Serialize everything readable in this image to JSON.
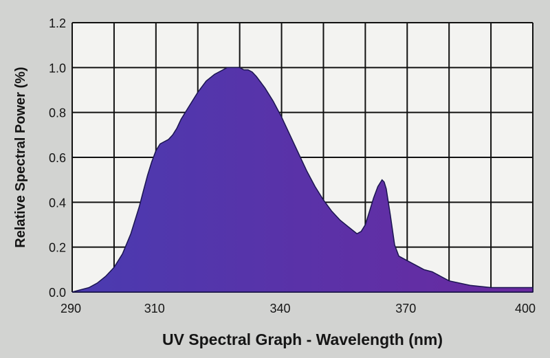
{
  "chart_data": {
    "type": "area",
    "title": "",
    "xlabel": "UV Spectral Graph - Wavelength (nm)",
    "ylabel": "Relative Spectral Power (%)",
    "xlim": [
      290,
      400
    ],
    "ylim": [
      0,
      1.2
    ],
    "x_ticks": [
      290,
      310,
      340,
      370,
      400
    ],
    "x_tick_labels": [
      "290",
      "310",
      "340",
      "370",
      "400"
    ],
    "y_ticks": [
      0,
      0.2,
      0.4,
      0.6,
      0.8,
      1.0,
      1.2
    ],
    "y_tick_labels": [
      "0.0",
      "0.2",
      "0.4",
      "0.6",
      "0.8",
      "1.0",
      "1.2"
    ],
    "grid": true,
    "fill_colors": [
      "#4a3bb0",
      "#5a32a8",
      "#6a2aa0"
    ],
    "series": [
      {
        "x": [
          290,
          292,
          294,
          296,
          298,
          300,
          302,
          304,
          306,
          307,
          308,
          309,
          310,
          311,
          312,
          313,
          314,
          315,
          316,
          318,
          320,
          322,
          324,
          326,
          327,
          328,
          329,
          330,
          331,
          332,
          333,
          334,
          336,
          338,
          340,
          342,
          344,
          346,
          348,
          350,
          352,
          354,
          356,
          358,
          359,
          360,
          361,
          362,
          363,
          364,
          364.5,
          365,
          366,
          367,
          368,
          370,
          372,
          374,
          376,
          378,
          380,
          385,
          390,
          395,
          400
        ],
        "y": [
          0.0,
          0.01,
          0.02,
          0.04,
          0.07,
          0.11,
          0.17,
          0.26,
          0.38,
          0.45,
          0.52,
          0.58,
          0.63,
          0.66,
          0.67,
          0.68,
          0.7,
          0.73,
          0.77,
          0.83,
          0.89,
          0.94,
          0.97,
          0.99,
          1.0,
          1.0,
          1.0,
          1.0,
          0.99,
          0.99,
          0.98,
          0.96,
          0.91,
          0.85,
          0.78,
          0.7,
          0.62,
          0.54,
          0.47,
          0.41,
          0.36,
          0.32,
          0.29,
          0.26,
          0.27,
          0.3,
          0.36,
          0.42,
          0.47,
          0.5,
          0.49,
          0.46,
          0.34,
          0.21,
          0.16,
          0.14,
          0.12,
          0.1,
          0.09,
          0.07,
          0.05,
          0.03,
          0.02,
          0.02,
          0.02
        ]
      }
    ]
  }
}
